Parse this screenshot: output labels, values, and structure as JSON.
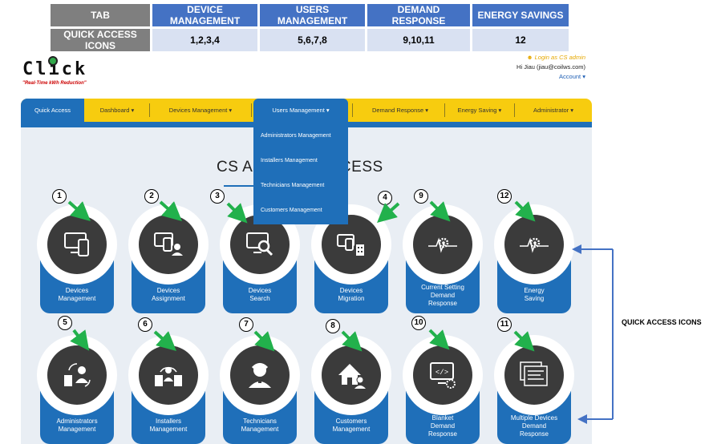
{
  "legend": {
    "headers": [
      "TAB",
      "DEVICE MANAGEMENT",
      "USERS MANAGEMENT",
      "DEMAND RESPONSE",
      "ENERGY SAVINGS"
    ],
    "row": [
      "QUICK ACCESS ICONS",
      "1,2,3,4",
      "5,6,7,8",
      "9,10,11",
      "12"
    ]
  },
  "logo": {
    "word": "Click",
    "tagline": "\"Real-Time kWh Reduction\""
  },
  "user": {
    "login_as": "Login as CS admin",
    "greeting": "Hi Jiau (jiau@coilws.com)",
    "account": "Account"
  },
  "nav": {
    "items": [
      "Quick Access",
      "Dashboard ▾",
      "Devices Management ▾",
      "Users Management ▾",
      "Demand Response ▾",
      "Energy Saving ▾",
      "Administrator ▾"
    ]
  },
  "dropdown": {
    "items": [
      "Administrators Management",
      "Installers Management",
      "Technicians Management",
      "Customers Management"
    ]
  },
  "page_title": {
    "left": "CS AD",
    "right": "ACCESS"
  },
  "tiles": [
    {
      "num": "1",
      "label1": "Devices",
      "label2": "Management",
      "label3": "",
      "icon": "devices-icon"
    },
    {
      "num": "2",
      "label1": "Devices",
      "label2": "Assignment",
      "label3": "",
      "icon": "device-assign-icon"
    },
    {
      "num": "3",
      "label1": "Devices",
      "label2": "Search",
      "label3": "",
      "icon": "device-search-icon"
    },
    {
      "num": "4",
      "label1": "Devices",
      "label2": "Migration",
      "label3": "",
      "icon": "device-migration-icon"
    },
    {
      "num": "9",
      "label1": "Current Setting",
      "label2": "Demand",
      "label3": "Response",
      "icon": "pulse-gear-icon"
    },
    {
      "num": "12",
      "label1": "Energy",
      "label2": "Saving",
      "label3": "",
      "icon": "pulse-gear-icon"
    },
    {
      "num": "5",
      "label1": "Administrators",
      "label2": "Management",
      "label3": "",
      "icon": "admin-icon"
    },
    {
      "num": "6",
      "label1": "Installers",
      "label2": "Management",
      "label3": "",
      "icon": "installers-icon"
    },
    {
      "num": "7",
      "label1": "Technicians",
      "label2": "Management",
      "label3": "",
      "icon": "technician-icon"
    },
    {
      "num": "8",
      "label1": "Customers",
      "label2": "Management",
      "label3": "",
      "icon": "customer-home-icon"
    },
    {
      "num": "10",
      "label1": "Blanket",
      "label2": "Demand",
      "label3": "Response",
      "icon": "blanket-dr-icon"
    },
    {
      "num": "11",
      "label1": "Multiple Devices",
      "label2": "Demand",
      "label3": "Response",
      "icon": "multi-dr-icon"
    }
  ],
  "annotation": {
    "quick_access_label": "QUICK ACCESS ICONS"
  },
  "colors": {
    "brand_blue": "#1f6fb9",
    "nav_yellow": "#f7cc0f",
    "arrow_green": "#22b14c",
    "bracket_blue": "#4472c4"
  }
}
